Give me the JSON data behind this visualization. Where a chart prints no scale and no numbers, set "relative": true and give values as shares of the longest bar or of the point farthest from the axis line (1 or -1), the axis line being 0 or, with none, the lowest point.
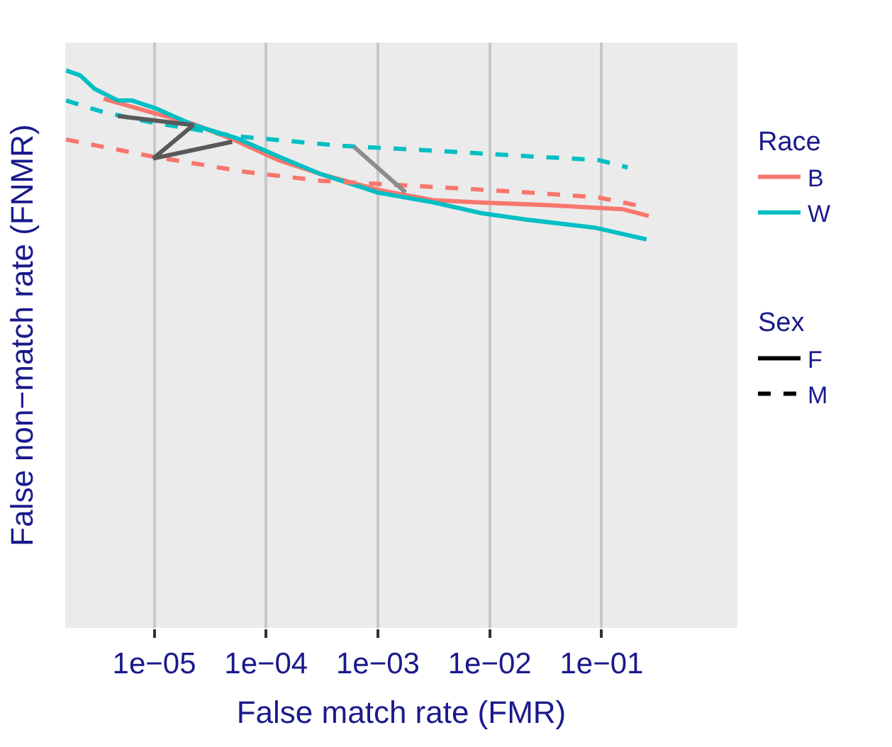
{
  "chart_data": {
    "type": "line",
    "relative": true,
    "log": "x",
    "xlabel": "False match rate (FMR)",
    "ylabel": "False non−match rate (FNMR)",
    "legend_title": [
      "Race",
      "Sex"
    ],
    "legend": "right",
    "grid": "x",
    "tick_labels": "x",
    "xlim": [
      1.6e-06,
      1.64
    ],
    "xticks": [
      {
        "value": 1e-05,
        "label": "1e−05"
      },
      {
        "value": 0.0001,
        "label": "1e−04"
      },
      {
        "value": 0.001,
        "label": "1e−03"
      },
      {
        "value": 0.01,
        "label": "1e−02"
      },
      {
        "value": 0.1,
        "label": "1e−01"
      }
    ],
    "series": [
      {
        "color": "#f8766d",
        "line_style": "solid",
        "x": [
          3.53e-06,
          9.35e-06,
          2.24e-05,
          5.37e-05,
          0.000129,
          0.000309,
          0.00099,
          0.00318,
          0.0084,
          0.0361,
          0.155,
          0.264
        ],
        "values": [
          0.949,
          0.925,
          0.904,
          0.874,
          0.839,
          0.814,
          0.786,
          0.767,
          0.763,
          0.758,
          0.751,
          0.739
        ]
      },
      {
        "color": "#00bfc4",
        "line_style": "solid",
        "x": [
          1.63e-06,
          2.18e-06,
          2.92e-06,
          4.73e-06,
          6.32e-06,
          1.03e-05,
          2.24e-05,
          5.37e-05,
          0.000142,
          0.000309,
          0.00099,
          0.00318,
          0.0084,
          0.0222,
          0.0865,
          0.252
        ],
        "values": [
          1.0,
          0.991,
          0.967,
          0.946,
          0.946,
          0.932,
          0.902,
          0.879,
          0.842,
          0.814,
          0.781,
          0.763,
          0.744,
          0.732,
          0.718,
          0.697
        ]
      },
      {
        "color": "#f8766d",
        "line_style": "dashed",
        "x": [
          1.63e-06,
          9.35e-06,
          6.52e-05,
          0.000309,
          0.00318,
          0.0222,
          0.095,
          0.207
        ],
        "values": [
          0.876,
          0.846,
          0.818,
          0.802,
          0.791,
          0.781,
          0.772,
          0.758
        ]
      },
      {
        "color": "#00bfc4",
        "line_style": "dashed",
        "x": [
          1.63e-06,
          3.53e-06,
          9.35e-06,
          5.37e-05,
          0.000455,
          0.00318,
          0.0222,
          0.095,
          0.171
        ],
        "values": [
          0.946,
          0.925,
          0.907,
          0.882,
          0.865,
          0.856,
          0.846,
          0.839,
          0.826
        ]
      },
      {
        "color": "#595959",
        "line_style": "solid",
        "x": [
          4.73e-06,
          2.24e-05,
          9.8e-06,
          4.97e-05
        ],
        "values": [
          0.918,
          0.902,
          0.842,
          0.872
        ]
      },
      {
        "color": "#8c8c8c",
        "line_style": "solid",
        "x": [
          0.00061,
          0.00177
        ],
        "values": [
          0.863,
          0.781
        ]
      },
      {
        "name": "B",
        "color": "#f8766d",
        "line_style": "solid"
      },
      {
        "name": "W",
        "color": "#00bfc4",
        "line_style": "solid"
      },
      {
        "name": "F",
        "color": "#000000",
        "line_style": "solid"
      },
      {
        "name": "M",
        "color": "#000000",
        "line_style": "dashed"
      }
    ]
  }
}
